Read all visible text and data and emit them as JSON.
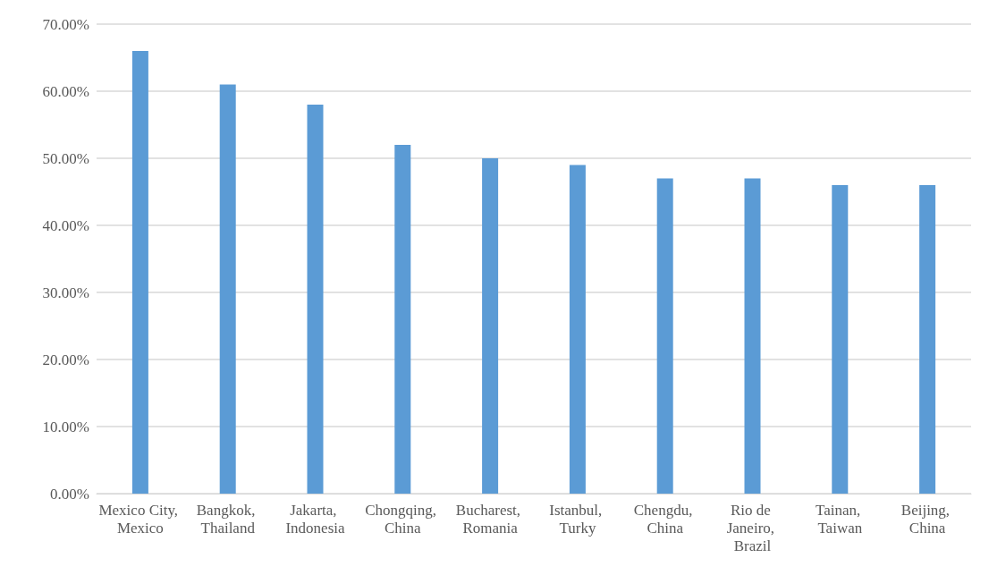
{
  "chart_data": {
    "type": "bar",
    "categories": [
      "Mexico City, Mexico",
      "Bangkok, Thailand",
      "Jakarta, Indonesia",
      "Chongqing, China",
      "Bucharest, Romania",
      "Istanbul, Turky",
      "Chengdu, China",
      "Rio de Janeiro, Brazil",
      "Tainan, Taiwan",
      "Beijing, China"
    ],
    "values": [
      66,
      61,
      58,
      52,
      50,
      49,
      47,
      47,
      46,
      46
    ],
    "color": "#5b9bd5",
    "ylim": [
      0,
      70
    ],
    "yticks": [
      {
        "value": 0,
        "label": "0.00%"
      },
      {
        "value": 10,
        "label": "10.00%"
      },
      {
        "value": 20,
        "label": "20.00%"
      },
      {
        "value": 30,
        "label": "30.00%"
      },
      {
        "value": 40,
        "label": "40.00%"
      },
      {
        "value": 50,
        "label": "50.00%"
      },
      {
        "value": 60,
        "label": "60.00%"
      },
      {
        "value": 70,
        "label": "70.00%"
      }
    ],
    "grid": "y"
  }
}
